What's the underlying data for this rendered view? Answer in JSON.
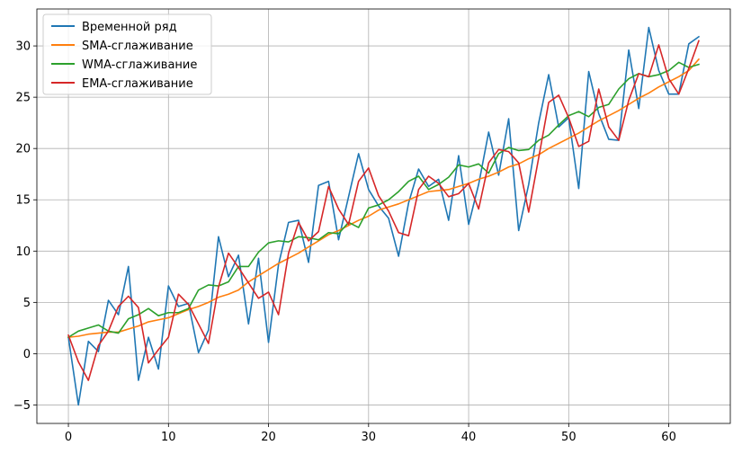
{
  "chart_data": {
    "type": "line",
    "title": "",
    "xlabel": "",
    "ylabel": "",
    "xlim": [
      -3.15,
      66.15
    ],
    "ylim": [
      -6.8,
      33.6
    ],
    "xticks": [
      0,
      10,
      20,
      30,
      40,
      50,
      60
    ],
    "yticks": [
      -5,
      0,
      5,
      10,
      15,
      20,
      25,
      30
    ],
    "xtick_labels": [
      "0",
      "10",
      "20",
      "30",
      "40",
      "50",
      "60"
    ],
    "ytick_labels": [
      "−5",
      "0",
      "5",
      "10",
      "15",
      "20",
      "25",
      "30"
    ],
    "grid": true,
    "legend_position": "top-left",
    "x": [
      0,
      1,
      2,
      3,
      4,
      5,
      6,
      7,
      8,
      9,
      10,
      11,
      12,
      13,
      14,
      15,
      16,
      17,
      18,
      19,
      20,
      21,
      22,
      23,
      24,
      25,
      26,
      27,
      28,
      29,
      30,
      31,
      32,
      33,
      34,
      35,
      36,
      37,
      38,
      39,
      40,
      41,
      42,
      43,
      44,
      45,
      46,
      47,
      48,
      49,
      50,
      51,
      52,
      53,
      54,
      55,
      56,
      57,
      58,
      59,
      60,
      61,
      62,
      63
    ],
    "series": [
      {
        "name": "Временной ряд",
        "color": "#1f77b4",
        "values": [
          1.6,
          -5.0,
          1.2,
          0.2,
          5.2,
          3.8,
          8.5,
          -2.6,
          1.6,
          -1.5,
          6.6,
          4.6,
          4.9,
          0.1,
          2.3,
          11.4,
          7.5,
          9.6,
          2.9,
          9.3,
          1.1,
          8.7,
          12.8,
          13.0,
          8.9,
          16.4,
          16.8,
          11.1,
          15.3,
          19.5,
          16.0,
          14.4,
          13.2,
          9.5,
          14.7,
          18.0,
          16.3,
          17.0,
          13.0,
          19.3,
          12.6,
          16.5,
          21.6,
          17.4,
          22.9,
          12.0,
          16.5,
          22.5,
          27.2,
          22.1,
          23.0,
          16.1,
          27.5,
          23.4,
          20.9,
          20.8,
          29.6,
          23.9,
          31.8,
          27.6,
          25.3,
          25.3,
          30.2,
          30.9
        ]
      },
      {
        "name": "SMA-сглаживание",
        "color": "#ff7f0e",
        "values": [
          1.6,
          1.7,
          1.9,
          2.0,
          2.1,
          2.1,
          2.4,
          2.7,
          3.1,
          3.3,
          3.5,
          3.9,
          4.3,
          4.6,
          5.0,
          5.5,
          5.8,
          6.2,
          7.0,
          7.6,
          8.2,
          8.8,
          9.3,
          9.8,
          10.4,
          11.0,
          11.6,
          12.0,
          12.5,
          13.0,
          13.4,
          14.0,
          14.3,
          14.6,
          15.0,
          15.4,
          15.8,
          15.9,
          16.0,
          16.3,
          16.6,
          17.0,
          17.3,
          17.7,
          18.2,
          18.5,
          19.0,
          19.4,
          20.0,
          20.5,
          21.0,
          21.5,
          22.1,
          22.7,
          23.2,
          23.7,
          24.3,
          24.9,
          25.4,
          26.0,
          26.5,
          27.0,
          27.6,
          28.7
        ]
      },
      {
        "name": "WMA-сглаживание",
        "color": "#2ca02c",
        "values": [
          1.6,
          2.2,
          2.5,
          2.8,
          2.2,
          2.0,
          3.4,
          3.8,
          4.4,
          3.7,
          4.0,
          4.0,
          4.4,
          6.2,
          6.7,
          6.6,
          7.0,
          8.5,
          8.5,
          9.9,
          10.8,
          11.0,
          10.9,
          11.4,
          11.3,
          11.1,
          11.8,
          11.7,
          12.8,
          12.3,
          14.2,
          14.5,
          15.0,
          15.8,
          16.8,
          17.3,
          16.0,
          16.5,
          17.2,
          18.4,
          18.2,
          18.5,
          17.6,
          19.5,
          20.1,
          19.8,
          19.9,
          20.8,
          21.3,
          22.3,
          23.2,
          23.6,
          23.1,
          24.0,
          24.3,
          25.8,
          26.8,
          27.3,
          27.0,
          27.2,
          27.6,
          28.4,
          27.9,
          28.2
        ]
      },
      {
        "name": "EMA-сглаживание",
        "color": "#d62728",
        "values": [
          1.8,
          -0.8,
          -2.6,
          0.8,
          2.2,
          4.6,
          5.6,
          4.5,
          -0.9,
          0.4,
          1.6,
          5.8,
          4.8,
          2.9,
          1.0,
          6.5,
          9.8,
          8.4,
          6.9,
          5.4,
          6.0,
          3.8,
          9.8,
          12.8,
          11.0,
          11.9,
          16.3,
          14.1,
          12.6,
          16.8,
          18.1,
          15.4,
          13.9,
          11.8,
          11.5,
          16.0,
          17.3,
          16.6,
          15.3,
          15.6,
          16.6,
          14.1,
          18.6,
          19.9,
          19.7,
          18.6,
          13.8,
          19.1,
          24.5,
          25.2,
          23.0,
          20.2,
          20.7,
          25.8,
          22.1,
          20.8,
          24.7,
          27.3,
          27.0,
          30.1,
          26.8,
          25.3,
          27.8,
          30.5
        ]
      }
    ]
  }
}
